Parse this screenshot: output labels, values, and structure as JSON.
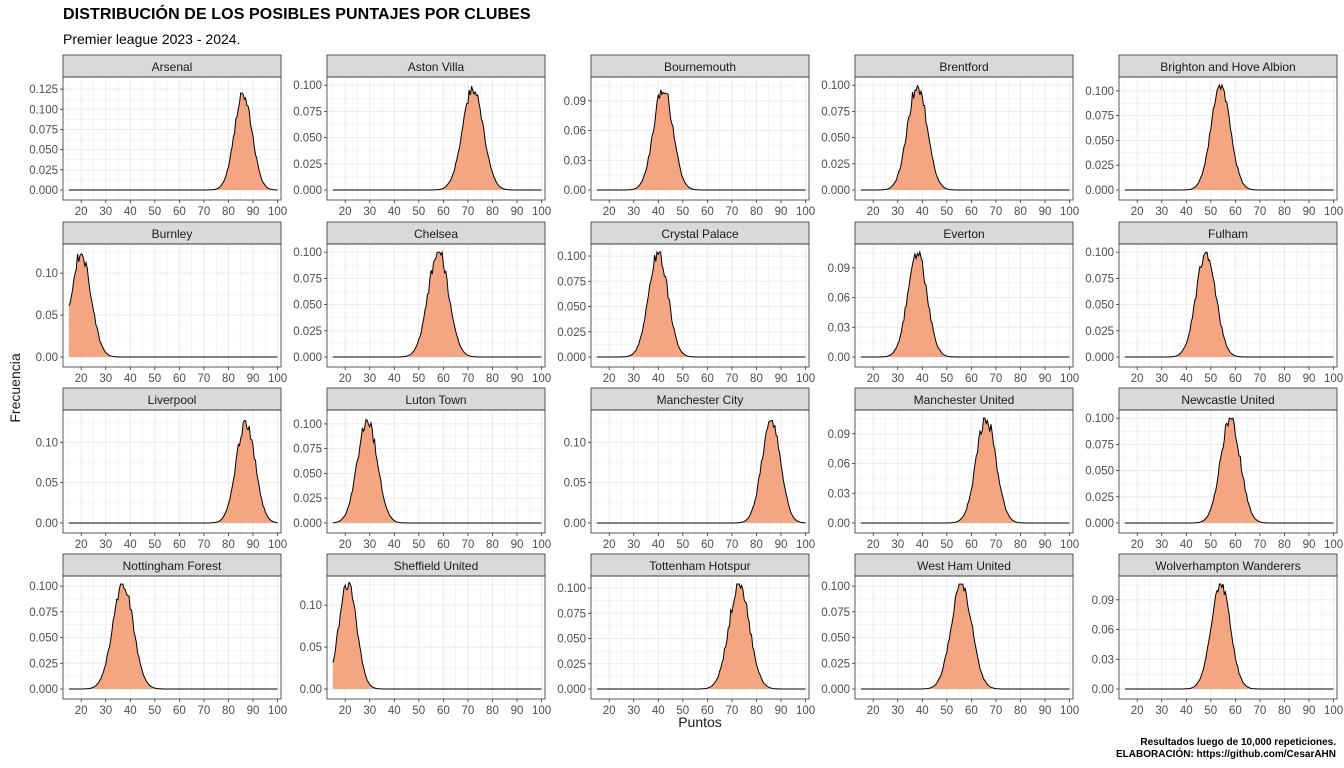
{
  "title": "DISTRIBUCIÓN DE LOS POSIBLES PUNTAJES POR CLUBES",
  "subtitle": "Premier league 2023 - 2024.",
  "caption_line1": "Resultados luego de 10,000 repeticiones.",
  "caption_line2": "ELABORACIÓN: https://github.com/CesarAHN",
  "chart_data": {
    "type": "area",
    "xlabel": "Puntos",
    "ylabel": "Frecuencia",
    "xlim": [
      13,
      101
    ],
    "x_ticks": [
      20,
      30,
      40,
      50,
      60,
      70,
      80,
      90,
      100
    ],
    "grid": true,
    "fill_color": "#F4A582",
    "line_color": "#000000",
    "strip_color": "#D9D9D9",
    "panels": [
      {
        "name": "Arsenal",
        "mean": 86,
        "sd": 3.6,
        "peak": 0.121,
        "ymax": 0.135,
        "y_ticks": [
          "0.000",
          "0.025",
          "0.050",
          "0.075",
          "0.100",
          "0.125"
        ],
        "y_values": [
          0,
          0.025,
          0.05,
          0.075,
          0.1,
          0.125
        ]
      },
      {
        "name": "Aston Villa",
        "mean": 72,
        "sd": 4.2,
        "peak": 0.099,
        "ymax": 0.104,
        "y_ticks": [
          "0.000",
          "0.025",
          "0.050",
          "0.075",
          "0.100"
        ],
        "y_values": [
          0,
          0.025,
          0.05,
          0.075,
          0.1
        ]
      },
      {
        "name": "Bournemouth",
        "mean": 42,
        "sd": 3.9,
        "peak": 0.104,
        "ymax": 0.11,
        "y_ticks": [
          "0.00",
          "0.03",
          "0.06",
          "0.09"
        ],
        "y_values": [
          0,
          0.03,
          0.06,
          0.09
        ]
      },
      {
        "name": "Brentford",
        "mean": 38,
        "sd": 4.0,
        "peak": 0.1,
        "ymax": 0.104,
        "y_ticks": [
          "0.000",
          "0.025",
          "0.050",
          "0.075",
          "0.100"
        ],
        "y_values": [
          0,
          0.025,
          0.05,
          0.075,
          0.1
        ]
      },
      {
        "name": "Brighton and Hove Albion",
        "mean": 54,
        "sd": 3.9,
        "peak": 0.106,
        "ymax": 0.11,
        "y_ticks": [
          "0.000",
          "0.025",
          "0.050",
          "0.075",
          "0.100"
        ],
        "y_values": [
          0,
          0.025,
          0.05,
          0.075,
          0.1
        ]
      },
      {
        "name": "Burnley",
        "mean": 20,
        "sd": 4.0,
        "peak": 0.125,
        "ymax": 0.13,
        "y_ticks": [
          "0.00",
          "0.05",
          "0.10"
        ],
        "y_values": [
          0,
          0.05,
          0.1
        ]
      },
      {
        "name": "Chelsea",
        "mean": 58,
        "sd": 4.2,
        "peak": 0.1,
        "ymax": 0.104,
        "y_ticks": [
          "0.000",
          "0.025",
          "0.050",
          "0.075",
          "0.100"
        ],
        "y_values": [
          0,
          0.025,
          0.05,
          0.075,
          0.1
        ]
      },
      {
        "name": "Crystal Palace",
        "mean": 40,
        "sd": 3.9,
        "peak": 0.104,
        "ymax": 0.108,
        "y_ticks": [
          "0.000",
          "0.025",
          "0.050",
          "0.075",
          "0.100"
        ],
        "y_values": [
          0,
          0.025,
          0.05,
          0.075,
          0.1
        ]
      },
      {
        "name": "Everton",
        "mean": 38,
        "sd": 3.9,
        "peak": 0.106,
        "ymax": 0.11,
        "y_ticks": [
          "0.00",
          "0.03",
          "0.06",
          "0.09"
        ],
        "y_values": [
          0,
          0.03,
          0.06,
          0.09
        ]
      },
      {
        "name": "Fulham",
        "mean": 48,
        "sd": 4.0,
        "peak": 0.1,
        "ymax": 0.104,
        "y_ticks": [
          "0.000",
          "0.025",
          "0.050",
          "0.075",
          "0.100"
        ],
        "y_values": [
          0,
          0.025,
          0.05,
          0.075,
          0.1
        ]
      },
      {
        "name": "Liverpool",
        "mean": 87,
        "sd": 3.8,
        "peak": 0.127,
        "ymax": 0.135,
        "y_ticks": [
          "0.00",
          "0.05",
          "0.10"
        ],
        "y_values": [
          0,
          0.05,
          0.1
        ]
      },
      {
        "name": "Luton Town",
        "mean": 29,
        "sd": 4.0,
        "peak": 0.105,
        "ymax": 0.11,
        "y_ticks": [
          "0.000",
          "0.025",
          "0.050",
          "0.075",
          "0.100"
        ],
        "y_values": [
          0,
          0.025,
          0.05,
          0.075,
          0.1
        ]
      },
      {
        "name": "Manchester City",
        "mean": 86,
        "sd": 3.8,
        "peak": 0.127,
        "ymax": 0.135,
        "y_ticks": [
          "0.00",
          "0.05",
          "0.10"
        ],
        "y_values": [
          0,
          0.05,
          0.1
        ]
      },
      {
        "name": "Manchester United",
        "mean": 66,
        "sd": 4.0,
        "peak": 0.106,
        "ymax": 0.11,
        "y_ticks": [
          "0.00",
          "0.03",
          "0.06",
          "0.09"
        ],
        "y_values": [
          0,
          0.03,
          0.06,
          0.09
        ]
      },
      {
        "name": "Newcastle United",
        "mean": 58,
        "sd": 4.0,
        "peak": 0.1,
        "ymax": 0.104,
        "y_ticks": [
          "0.000",
          "0.025",
          "0.050",
          "0.075",
          "0.100"
        ],
        "y_values": [
          0,
          0.025,
          0.05,
          0.075,
          0.1
        ]
      },
      {
        "name": "Nottingham Forest",
        "mean": 37,
        "sd": 4.2,
        "peak": 0.102,
        "ymax": 0.106,
        "y_ticks": [
          "0.000",
          "0.025",
          "0.050",
          "0.075",
          "0.100"
        ],
        "y_values": [
          0,
          0.025,
          0.05,
          0.075,
          0.1
        ]
      },
      {
        "name": "Sheffield United",
        "mean": 21,
        "sd": 3.6,
        "peak": 0.127,
        "ymax": 0.13,
        "y_ticks": [
          "0.00",
          "0.05",
          "0.10"
        ],
        "y_values": [
          0,
          0.05,
          0.1
        ]
      },
      {
        "name": "Tottenham Hotspur",
        "mean": 73,
        "sd": 4.2,
        "peak": 0.104,
        "ymax": 0.108,
        "y_ticks": [
          "0.000",
          "0.025",
          "0.050",
          "0.075",
          "0.100"
        ],
        "y_values": [
          0,
          0.025,
          0.05,
          0.075,
          0.1
        ]
      },
      {
        "name": "West Ham United",
        "mean": 56,
        "sd": 4.2,
        "peak": 0.102,
        "ymax": 0.106,
        "y_ticks": [
          "0.000",
          "0.025",
          "0.050",
          "0.075",
          "0.100"
        ],
        "y_values": [
          0,
          0.025,
          0.05,
          0.075,
          0.1
        ]
      },
      {
        "name": "Wolverhampton Wanderers",
        "mean": 54,
        "sd": 3.9,
        "peak": 0.106,
        "ymax": 0.11,
        "y_ticks": [
          "0.00",
          "0.03",
          "0.06",
          "0.09"
        ],
        "y_values": [
          0,
          0.03,
          0.06,
          0.09
        ]
      }
    ]
  }
}
